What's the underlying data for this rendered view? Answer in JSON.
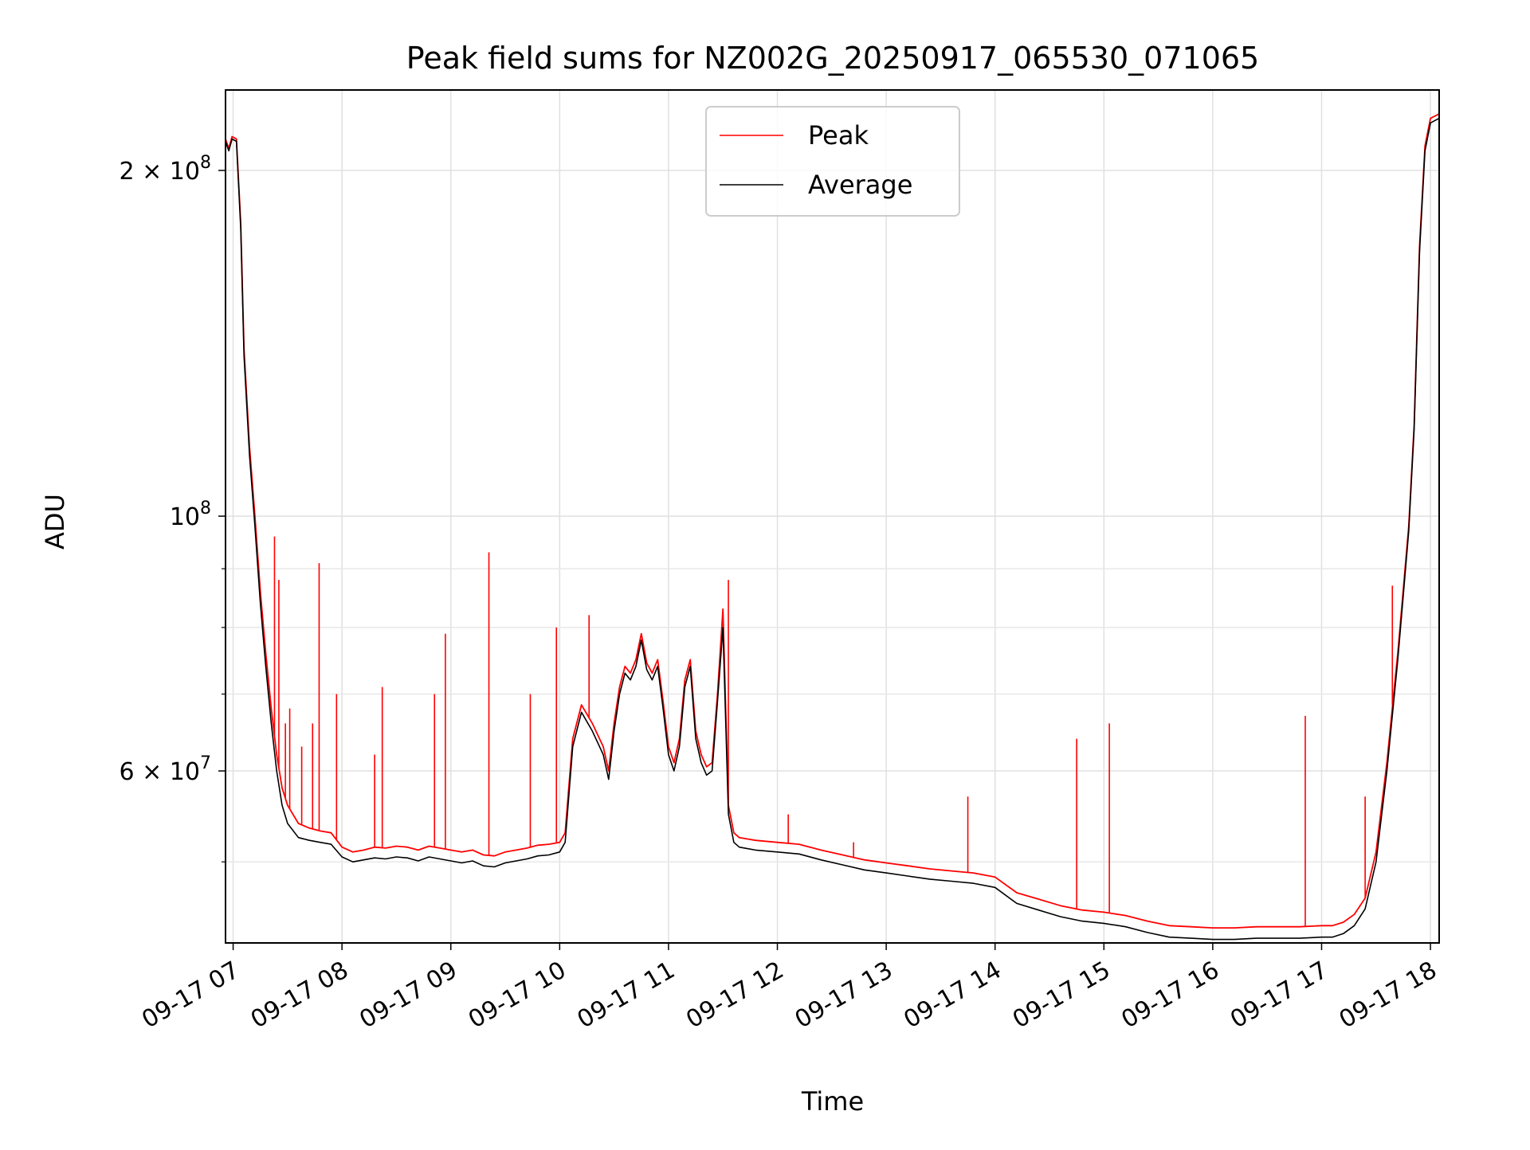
{
  "chart_data": {
    "type": "line",
    "title": "Peak field sums for NZ002G_20250917_065530_071065",
    "xlabel": "Time",
    "ylabel": "ADU",
    "y_scale": "log",
    "ylim": [
      42500000,
      235000000
    ],
    "xlim_hours": [
      6.93,
      18.08
    ],
    "x_ticks": [
      {
        "hour": 7,
        "label": "09-17 07"
      },
      {
        "hour": 8,
        "label": "09-17 08"
      },
      {
        "hour": 9,
        "label": "09-17 09"
      },
      {
        "hour": 10,
        "label": "09-17 10"
      },
      {
        "hour": 11,
        "label": "09-17 11"
      },
      {
        "hour": 12,
        "label": "09-17 12"
      },
      {
        "hour": 13,
        "label": "09-17 13"
      },
      {
        "hour": 14,
        "label": "09-17 14"
      },
      {
        "hour": 15,
        "label": "09-17 15"
      },
      {
        "hour": 16,
        "label": "09-17 16"
      },
      {
        "hour": 17,
        "label": "09-17 17"
      },
      {
        "hour": 18,
        "label": "09-17 18"
      }
    ],
    "y_major_ticks": [
      {
        "value": 200000000,
        "mantissa": "2 × 10",
        "exp": "8"
      },
      {
        "value": 100000000,
        "mantissa": "10",
        "exp": "8"
      },
      {
        "value": 60000000,
        "mantissa": "6 × 10",
        "exp": "7"
      }
    ],
    "y_minor_ticks": [
      50000000,
      70000000,
      80000000,
      90000000
    ],
    "grid": true,
    "legend": {
      "placement": "upper-center",
      "entries": [
        "Peak",
        "Average"
      ]
    },
    "series": [
      {
        "name": "Peak",
        "color": "#ff0000",
        "x_hours": [
          6.93,
          6.96,
          6.99,
          7.03,
          7.07,
          7.1,
          7.15,
          7.2,
          7.25,
          7.3,
          7.35,
          7.4,
          7.45,
          7.5,
          7.6,
          7.7,
          7.8,
          7.9,
          8.0,
          8.1,
          8.2,
          8.3,
          8.4,
          8.5,
          8.6,
          8.7,
          8.8,
          8.9,
          9.0,
          9.1,
          9.2,
          9.3,
          9.4,
          9.5,
          9.6,
          9.7,
          9.8,
          9.9,
          10.0,
          10.05,
          10.12,
          10.2,
          10.3,
          10.4,
          10.45,
          10.5,
          10.55,
          10.6,
          10.65,
          10.7,
          10.75,
          10.8,
          10.85,
          10.9,
          10.95,
          11.0,
          11.05,
          11.1,
          11.15,
          11.2,
          11.25,
          11.3,
          11.35,
          11.4,
          11.45,
          11.5,
          11.55,
          11.6,
          11.65,
          11.7,
          11.8,
          12.0,
          12.2,
          12.4,
          12.6,
          12.8,
          13.0,
          13.2,
          13.4,
          13.6,
          13.8,
          14.0,
          14.2,
          14.4,
          14.6,
          14.8,
          15.0,
          15.2,
          15.4,
          15.6,
          15.8,
          16.0,
          16.2,
          16.4,
          16.6,
          16.8,
          17.0,
          17.1,
          17.2,
          17.3,
          17.4,
          17.5,
          17.6,
          17.7,
          17.8,
          17.85,
          17.9,
          17.95,
          18.0,
          18.08
        ],
        "values_mADU": [
          213,
          209,
          214,
          213,
          180,
          140,
          115,
          100,
          86,
          76,
          68,
          62,
          58,
          56,
          54,
          53.5,
          53.2,
          53,
          51.5,
          51,
          51.2,
          51.5,
          51.4,
          51.6,
          51.5,
          51.2,
          51.6,
          51.4,
          51.2,
          51,
          51.2,
          50.7,
          50.6,
          51,
          51.2,
          51.4,
          51.7,
          51.8,
          52,
          53,
          64,
          68.5,
          66,
          63,
          60,
          66,
          71,
          74,
          73,
          75,
          79,
          74.5,
          73,
          75,
          69,
          63,
          61,
          64,
          72,
          75,
          65,
          62,
          60.5,
          61,
          70,
          83,
          56,
          53,
          52.5,
          52.4,
          52.2,
          52,
          51.8,
          51.2,
          50.7,
          50.2,
          49.9,
          49.6,
          49.3,
          49.1,
          48.9,
          48.5,
          47,
          46.4,
          45.8,
          45.4,
          45.2,
          44.9,
          44.4,
          44,
          43.9,
          43.8,
          43.8,
          43.9,
          43.9,
          43.9,
          44,
          44,
          44.3,
          45,
          46.5,
          51,
          61,
          76,
          98,
          120,
          172,
          210,
          222,
          224,
          226,
          228
        ]
      },
      {
        "name": "Average",
        "color": "#000000",
        "x_hours": [
          6.93,
          6.96,
          6.99,
          7.03,
          7.07,
          7.1,
          7.15,
          7.2,
          7.25,
          7.3,
          7.35,
          7.4,
          7.45,
          7.5,
          7.6,
          7.7,
          7.8,
          7.9,
          8.0,
          8.1,
          8.2,
          8.3,
          8.4,
          8.5,
          8.6,
          8.7,
          8.8,
          8.9,
          9.0,
          9.1,
          9.2,
          9.3,
          9.4,
          9.5,
          9.6,
          9.7,
          9.8,
          9.9,
          10.0,
          10.05,
          10.12,
          10.2,
          10.3,
          10.4,
          10.45,
          10.5,
          10.55,
          10.6,
          10.65,
          10.7,
          10.75,
          10.8,
          10.85,
          10.9,
          10.95,
          11.0,
          11.05,
          11.1,
          11.15,
          11.2,
          11.25,
          11.3,
          11.35,
          11.4,
          11.45,
          11.5,
          11.55,
          11.6,
          11.65,
          11.7,
          11.8,
          12.0,
          12.2,
          12.4,
          12.6,
          12.8,
          13.0,
          13.2,
          13.4,
          13.6,
          13.8,
          14.0,
          14.2,
          14.4,
          14.6,
          14.8,
          15.0,
          15.2,
          15.4,
          15.6,
          15.8,
          16.0,
          16.2,
          16.4,
          16.6,
          16.8,
          17.0,
          17.1,
          17.2,
          17.3,
          17.4,
          17.5,
          17.6,
          17.7,
          17.8,
          17.85,
          17.9,
          17.95,
          18.0,
          18.08
        ],
        "values_mADU": [
          212,
          208,
          213,
          212,
          178,
          138,
          113,
          98,
          84,
          74,
          66,
          60,
          56,
          54,
          52.5,
          52.2,
          52,
          51.8,
          50.5,
          50,
          50.2,
          50.4,
          50.3,
          50.5,
          50.4,
          50.1,
          50.5,
          50.3,
          50.1,
          49.9,
          50.1,
          49.6,
          49.5,
          49.9,
          50.1,
          50.3,
          50.6,
          50.7,
          51,
          52,
          63,
          67.5,
          65,
          62,
          59,
          65,
          70,
          73,
          72,
          74,
          78,
          73.5,
          72,
          74,
          68,
          62,
          60,
          63,
          71,
          74,
          64,
          61,
          59.5,
          60,
          69,
          80,
          55,
          52,
          51.5,
          51.4,
          51.2,
          51,
          50.8,
          50.2,
          49.7,
          49.2,
          48.9,
          48.6,
          48.3,
          48.1,
          47.9,
          47.5,
          46,
          45.4,
          44.8,
          44.4,
          44.2,
          43.9,
          43.4,
          43,
          42.9,
          42.8,
          42.8,
          42.9,
          42.9,
          42.9,
          43,
          43,
          43.3,
          44,
          45.5,
          50,
          60,
          75,
          97,
          119,
          170,
          208,
          220,
          222,
          224,
          226
        ]
      }
    ],
    "peak_spikes": [
      {
        "hour": 7.38,
        "value_mADU": 96
      },
      {
        "hour": 7.42,
        "value_mADU": 88
      },
      {
        "hour": 7.48,
        "value_mADU": 66
      },
      {
        "hour": 7.52,
        "value_mADU": 68
      },
      {
        "hour": 7.63,
        "value_mADU": 63
      },
      {
        "hour": 7.73,
        "value_mADU": 66
      },
      {
        "hour": 7.79,
        "value_mADU": 91
      },
      {
        "hour": 7.95,
        "value_mADU": 70
      },
      {
        "hour": 8.3,
        "value_mADU": 62
      },
      {
        "hour": 8.37,
        "value_mADU": 71
      },
      {
        "hour": 8.85,
        "value_mADU": 70
      },
      {
        "hour": 8.95,
        "value_mADU": 79
      },
      {
        "hour": 9.35,
        "value_mADU": 93
      },
      {
        "hour": 9.73,
        "value_mADU": 70
      },
      {
        "hour": 9.97,
        "value_mADU": 80
      },
      {
        "hour": 10.27,
        "value_mADU": 82
      },
      {
        "hour": 11.55,
        "value_mADU": 88
      },
      {
        "hour": 12.1,
        "value_mADU": 55
      },
      {
        "hour": 12.7,
        "value_mADU": 52
      },
      {
        "hour": 13.75,
        "value_mADU": 57
      },
      {
        "hour": 14.75,
        "value_mADU": 64
      },
      {
        "hour": 15.05,
        "value_mADU": 66
      },
      {
        "hour": 16.85,
        "value_mADU": 67
      },
      {
        "hour": 17.4,
        "value_mADU": 57
      },
      {
        "hour": 17.65,
        "value_mADU": 87
      }
    ]
  }
}
